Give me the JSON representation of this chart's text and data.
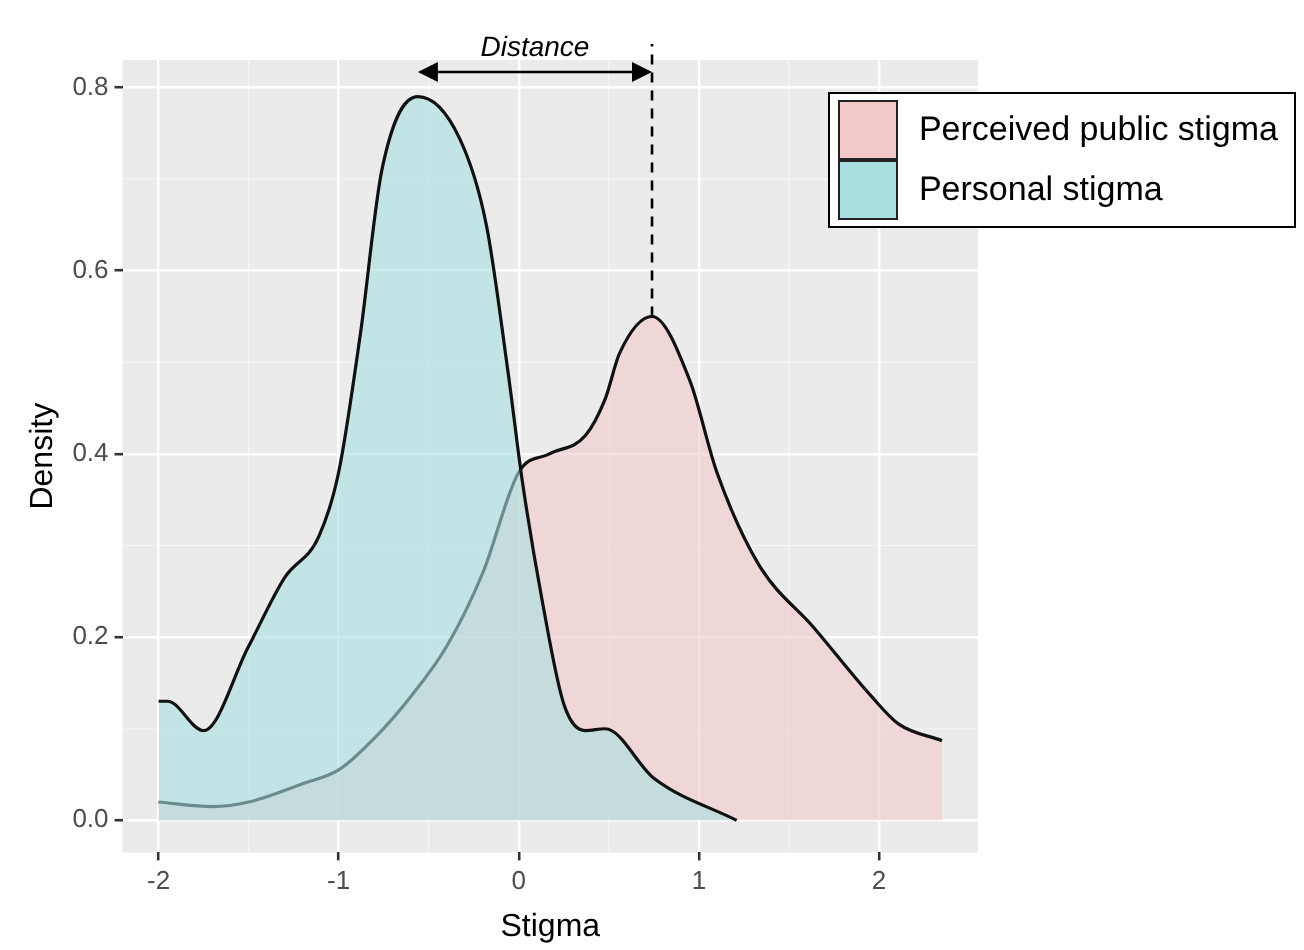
{
  "chart_data": {
    "type": "area",
    "xlabel": "Stigma",
    "ylabel": "Density",
    "annotations": [
      "Distance"
    ],
    "xlim": [
      -2.2,
      2.55
    ],
    "xticks": [
      -2,
      -1,
      0,
      1,
      2
    ],
    "ylim": [
      -0.035,
      0.83
    ],
    "yticks": [
      {
        "value": 0,
        "label": "0.0"
      },
      {
        "value": 0.2,
        "label": "0.2"
      },
      {
        "value": 0.4,
        "label": "0.4"
      },
      {
        "value": 0.6,
        "label": "0.6"
      },
      {
        "value": 0.8,
        "label": "0.8"
      }
    ],
    "grid": true,
    "legend": "top right",
    "ref_lines": [
      {
        "axis": "x",
        "value": 0.74,
        "line_style": "dashed"
      }
    ],
    "series": [
      {
        "name": "Perceived public stigma",
        "color": "#f4c9c9",
        "x": [
          -2,
          -1.7,
          -1.5,
          -1.2,
          -1,
          -0.8,
          -0.6,
          -0.4,
          -0.2,
          0,
          0.17,
          0.37,
          0.48,
          0.56,
          0.74,
          0.95,
          1.1,
          1.33,
          1.64,
          1.96,
          2.11,
          2.35
        ],
        "values": [
          0.02,
          0.015,
          0.02,
          0.04,
          0.055,
          0.09,
          0.135,
          0.19,
          0.27,
          0.38,
          0.4,
          0.42,
          0.46,
          0.51,
          0.55,
          0.48,
          0.38,
          0.28,
          0.21,
          0.135,
          0.105,
          0.087
        ]
      },
      {
        "name": "Personal stigma",
        "color": "#a9dfe0",
        "x": [
          -2,
          -1.95,
          -1.75,
          -1.5,
          -1.3,
          -1.11,
          -1,
          -0.88,
          -0.76,
          -0.56,
          -0.33,
          -0.18,
          -0.06,
          0.02,
          0.13,
          0.25,
          0.37,
          0.48,
          0.75,
          1.21
        ],
        "values": [
          0.13,
          0.13,
          0.098,
          0.19,
          0.265,
          0.31,
          0.38,
          0.53,
          0.71,
          0.79,
          0.745,
          0.65,
          0.49,
          0.37,
          0.24,
          0.127,
          0.098,
          0.1,
          0.046,
          0
        ]
      }
    ]
  }
}
